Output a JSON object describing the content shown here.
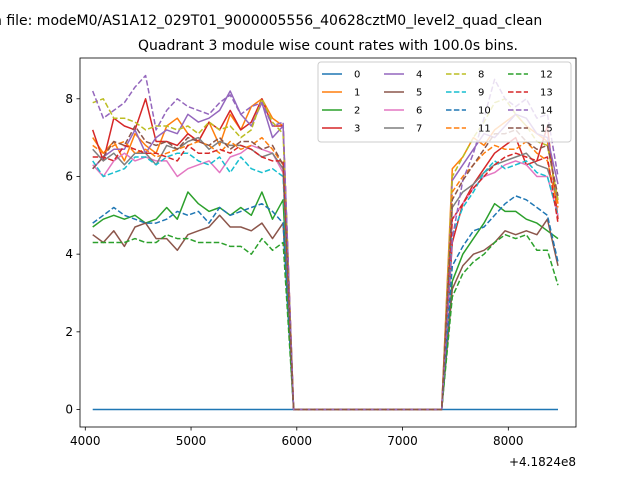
{
  "suptitle": "n file: modeM0/AS1A12_029T01_9000005556_40628cztM0_level2_quad_clean",
  "chart_data": {
    "type": "line",
    "title": "Quadrant 3 module wise count rates with 100.0s bins.",
    "xlabel": "",
    "ylabel": "",
    "x_offset_label": "+4.1824e8",
    "xlim": [
      3950,
      8640
    ],
    "ylim": [
      -0.45,
      9.05
    ],
    "xticks": [
      4000,
      5000,
      6000,
      7000,
      8000
    ],
    "yticks": [
      0,
      2,
      4,
      6,
      8
    ],
    "grid": false,
    "legend_position": "top-right",
    "legend_columns": 4,
    "x": [
      4070,
      4170,
      4270,
      4370,
      4470,
      4570,
      4670,
      4770,
      4870,
      4970,
      5070,
      5170,
      5270,
      5370,
      5470,
      5570,
      5670,
      5770,
      5870,
      5970,
      6070,
      6170,
      6270,
      6370,
      6470,
      6570,
      6670,
      6770,
      6870,
      6970,
      7070,
      7170,
      7270,
      7370,
      7470,
      7570,
      7670,
      7770,
      7870,
      7970,
      8070,
      8170,
      8270,
      8370,
      8470
    ],
    "series": [
      {
        "name": "0",
        "color": "#1f77b4",
        "dash": "solid",
        "values": [
          0,
          0,
          0,
          0,
          0,
          0,
          0,
          0,
          0,
          0,
          0,
          0,
          0,
          0,
          0,
          0,
          0,
          0,
          0,
          0,
          0,
          0,
          0,
          0,
          0,
          0,
          0,
          0,
          0,
          0,
          0,
          0,
          0,
          0,
          0,
          0,
          0,
          0,
          0,
          0,
          0,
          0,
          0,
          0,
          0
        ]
      },
      {
        "name": "1",
        "color": "#ff7f0e",
        "dash": "solid",
        "values": [
          7.0,
          6.6,
          6.9,
          6.4,
          7.1,
          6.8,
          6.6,
          7.3,
          7.5,
          7.1,
          6.9,
          7.4,
          6.8,
          7.6,
          7.2,
          7.8,
          8.0,
          7.5,
          7.3,
          0,
          0,
          0,
          0,
          0,
          0,
          0,
          0,
          0,
          0,
          0,
          0,
          0,
          0,
          0,
          6.2,
          6.5,
          7.0,
          6.8,
          7.2,
          7.4,
          7.6,
          7.3,
          7.1,
          6.9,
          5.3
        ]
      },
      {
        "name": "2",
        "color": "#2ca02c",
        "dash": "solid",
        "values": [
          4.7,
          4.9,
          5.0,
          4.9,
          5.0,
          4.8,
          4.9,
          5.2,
          4.9,
          5.6,
          5.3,
          5.1,
          5.2,
          5.0,
          5.2,
          5.0,
          5.6,
          4.9,
          5.4,
          0,
          0,
          0,
          0,
          0,
          0,
          0,
          0,
          0,
          0,
          0,
          0,
          0,
          0,
          0,
          3.3,
          4.0,
          4.4,
          4.8,
          5.3,
          5.1,
          5.1,
          4.9,
          4.8,
          4.6,
          4.4
        ]
      },
      {
        "name": "3",
        "color": "#d62728",
        "dash": "solid",
        "values": [
          7.2,
          6.4,
          7.5,
          7.3,
          7.2,
          8.0,
          6.9,
          6.9,
          6.8,
          7.1,
          6.9,
          7.4,
          7.2,
          7.7,
          7.2,
          7.4,
          8.0,
          7.3,
          7.3,
          0,
          0,
          0,
          0,
          0,
          0,
          0,
          0,
          0,
          0,
          0,
          0,
          0,
          0,
          0,
          4.3,
          5.3,
          5.8,
          6.2,
          6.6,
          6.8,
          7.0,
          6.3,
          6.4,
          7.3,
          4.9
        ]
      },
      {
        "name": "4",
        "color": "#9467bd",
        "dash": "solid",
        "values": [
          6.2,
          6.5,
          6.7,
          6.7,
          7.2,
          6.6,
          7.0,
          7.2,
          7.1,
          7.6,
          7.4,
          7.5,
          7.7,
          8.2,
          7.6,
          7.3,
          7.9,
          7.0,
          7.3,
          0,
          0,
          0,
          0,
          0,
          0,
          0,
          0,
          0,
          0,
          0,
          0,
          0,
          0,
          0,
          5.9,
          6.3,
          6.7,
          7.1,
          7.0,
          7.3,
          7.6,
          7.5,
          7.1,
          7.0,
          5.8
        ]
      },
      {
        "name": "5",
        "color": "#8c564b",
        "dash": "solid",
        "values": [
          4.5,
          4.3,
          4.6,
          4.2,
          4.7,
          4.8,
          4.4,
          4.4,
          4.1,
          4.5,
          4.6,
          4.7,
          5.0,
          4.7,
          4.7,
          4.6,
          4.8,
          4.4,
          4.8,
          0,
          0,
          0,
          0,
          0,
          0,
          0,
          0,
          0,
          0,
          0,
          0,
          0,
          0,
          0,
          3.1,
          3.7,
          4.0,
          4.1,
          4.3,
          4.6,
          4.5,
          4.6,
          4.5,
          4.9,
          3.7
        ]
      },
      {
        "name": "6",
        "color": "#e377c2",
        "dash": "solid",
        "values": [
          6.3,
          6.0,
          6.4,
          6.6,
          6.4,
          6.5,
          6.4,
          6.4,
          6.0,
          6.2,
          6.3,
          6.4,
          6.1,
          6.5,
          6.6,
          6.8,
          6.7,
          6.6,
          6.1,
          0,
          0,
          0,
          0,
          0,
          0,
          0,
          0,
          0,
          0,
          0,
          0,
          0,
          0,
          0,
          4.9,
          5.3,
          5.7,
          6.0,
          6.1,
          6.3,
          6.4,
          6.3,
          6.0,
          6.0,
          5.0
        ]
      },
      {
        "name": "7",
        "color": "#7f7f7f",
        "dash": "solid",
        "values": [
          6.7,
          6.4,
          6.6,
          6.3,
          6.6,
          6.6,
          6.3,
          6.8,
          6.7,
          6.9,
          7.0,
          6.7,
          6.9,
          6.8,
          6.8,
          6.7,
          6.5,
          6.6,
          6.2,
          0,
          0,
          0,
          0,
          0,
          0,
          0,
          0,
          0,
          0,
          0,
          0,
          0,
          0,
          0,
          5.2,
          5.6,
          5.8,
          6.1,
          6.3,
          6.4,
          6.5,
          6.6,
          6.3,
          6.2,
          5.4
        ]
      },
      {
        "name": "8",
        "color": "#bcbd22",
        "dash": "dashed",
        "values": [
          7.9,
          8.0,
          7.5,
          7.5,
          7.4,
          7.2,
          7.3,
          7.3,
          7.2,
          7.3,
          7.1,
          7.4,
          7.2,
          7.3,
          7.0,
          7.2,
          8.0,
          7.4,
          7.1,
          0,
          0,
          0,
          0,
          0,
          0,
          0,
          0,
          0,
          0,
          0,
          0,
          0,
          0,
          0,
          6.0,
          6.5,
          7.0,
          7.4,
          7.9,
          8.0,
          7.6,
          7.3,
          6.9,
          6.8,
          5.4
        ]
      },
      {
        "name": "9",
        "color": "#17becf",
        "dash": "dashed",
        "values": [
          6.4,
          6.0,
          6.1,
          6.2,
          6.5,
          6.5,
          6.3,
          6.5,
          6.6,
          6.6,
          6.4,
          6.3,
          6.5,
          6.1,
          6.5,
          6.2,
          6.1,
          6.2,
          6.0,
          0,
          0,
          0,
          0,
          0,
          0,
          0,
          0,
          0,
          0,
          0,
          0,
          0,
          0,
          0,
          4.5,
          5.2,
          5.6,
          6.1,
          6.4,
          6.2,
          6.3,
          6.4,
          6.1,
          6.0,
          5.0
        ]
      },
      {
        "name": "10",
        "color": "#1f77b4",
        "dash": "dashed",
        "values": [
          4.8,
          5.0,
          5.2,
          5.0,
          4.9,
          4.8,
          4.8,
          4.9,
          5.1,
          5.0,
          5.1,
          4.8,
          5.2,
          5.0,
          5.1,
          5.2,
          5.3,
          5.1,
          4.8,
          0,
          0,
          0,
          0,
          0,
          0,
          0,
          0,
          0,
          0,
          0,
          0,
          0,
          0,
          0,
          3.7,
          4.2,
          4.6,
          4.7,
          5.0,
          5.3,
          5.5,
          5.4,
          5.2,
          5.0,
          3.8
        ]
      },
      {
        "name": "11",
        "color": "#ff7f0e",
        "dash": "dashed",
        "values": [
          6.8,
          6.6,
          6.8,
          6.9,
          6.6,
          6.7,
          6.5,
          6.6,
          6.7,
          6.8,
          6.9,
          6.8,
          6.6,
          6.9,
          6.7,
          6.8,
          7.0,
          6.7,
          6.3,
          0,
          0,
          0,
          0,
          0,
          0,
          0,
          0,
          0,
          0,
          0,
          0,
          0,
          0,
          0,
          5.6,
          6.0,
          6.3,
          6.6,
          6.8,
          6.7,
          6.7,
          6.9,
          6.6,
          6.4,
          5.2
        ]
      },
      {
        "name": "12",
        "color": "#2ca02c",
        "dash": "dashed",
        "values": [
          4.3,
          4.3,
          4.3,
          4.3,
          4.4,
          4.3,
          4.3,
          4.5,
          4.4,
          4.4,
          4.3,
          4.3,
          4.3,
          4.2,
          4.2,
          4.0,
          4.4,
          4.1,
          4.3,
          0,
          0,
          0,
          0,
          0,
          0,
          0,
          0,
          0,
          0,
          0,
          0,
          0,
          0,
          0,
          2.9,
          3.5,
          3.8,
          4.0,
          4.3,
          4.5,
          4.4,
          4.5,
          4.1,
          4.1,
          3.2
        ]
      },
      {
        "name": "13",
        "color": "#d62728",
        "dash": "dashed",
        "values": [
          6.5,
          6.5,
          6.4,
          6.8,
          6.7,
          6.6,
          6.6,
          6.5,
          6.4,
          6.8,
          6.6,
          6.6,
          6.7,
          6.6,
          6.8,
          6.7,
          6.5,
          6.4,
          6.4,
          0,
          0,
          0,
          0,
          0,
          0,
          0,
          0,
          0,
          0,
          0,
          0,
          0,
          0,
          0,
          4.9,
          5.3,
          5.7,
          6.0,
          6.3,
          6.5,
          6.6,
          6.5,
          6.4,
          6.5,
          4.8
        ]
      },
      {
        "name": "14",
        "color": "#9467bd",
        "dash": "dashed",
        "values": [
          8.2,
          7.5,
          7.7,
          7.9,
          8.3,
          8.6,
          7.2,
          7.7,
          8.0,
          7.8,
          7.7,
          7.6,
          7.9,
          8.1,
          7.6,
          7.8,
          7.9,
          7.3,
          7.4,
          0,
          0,
          0,
          0,
          0,
          0,
          0,
          0,
          0,
          0,
          0,
          0,
          0,
          0,
          0,
          4.4,
          5.9,
          6.6,
          7.5,
          8.5,
          8.0,
          7.8,
          8.0,
          7.5,
          7.6,
          6.0
        ]
      },
      {
        "name": "15",
        "color": "#8c564b",
        "dash": "dashed",
        "values": [
          6.2,
          6.5,
          6.9,
          6.8,
          7.3,
          6.9,
          6.8,
          6.9,
          6.7,
          7.0,
          6.9,
          6.8,
          7.0,
          6.7,
          6.9,
          6.9,
          6.7,
          6.8,
          6.3,
          0,
          0,
          0,
          0,
          0,
          0,
          0,
          0,
          0,
          0,
          0,
          0,
          0,
          0,
          0,
          5.4,
          5.9,
          6.3,
          6.7,
          7.1,
          7.1,
          7.2,
          6.9,
          6.7,
          6.8,
          5.5
        ]
      }
    ]
  }
}
